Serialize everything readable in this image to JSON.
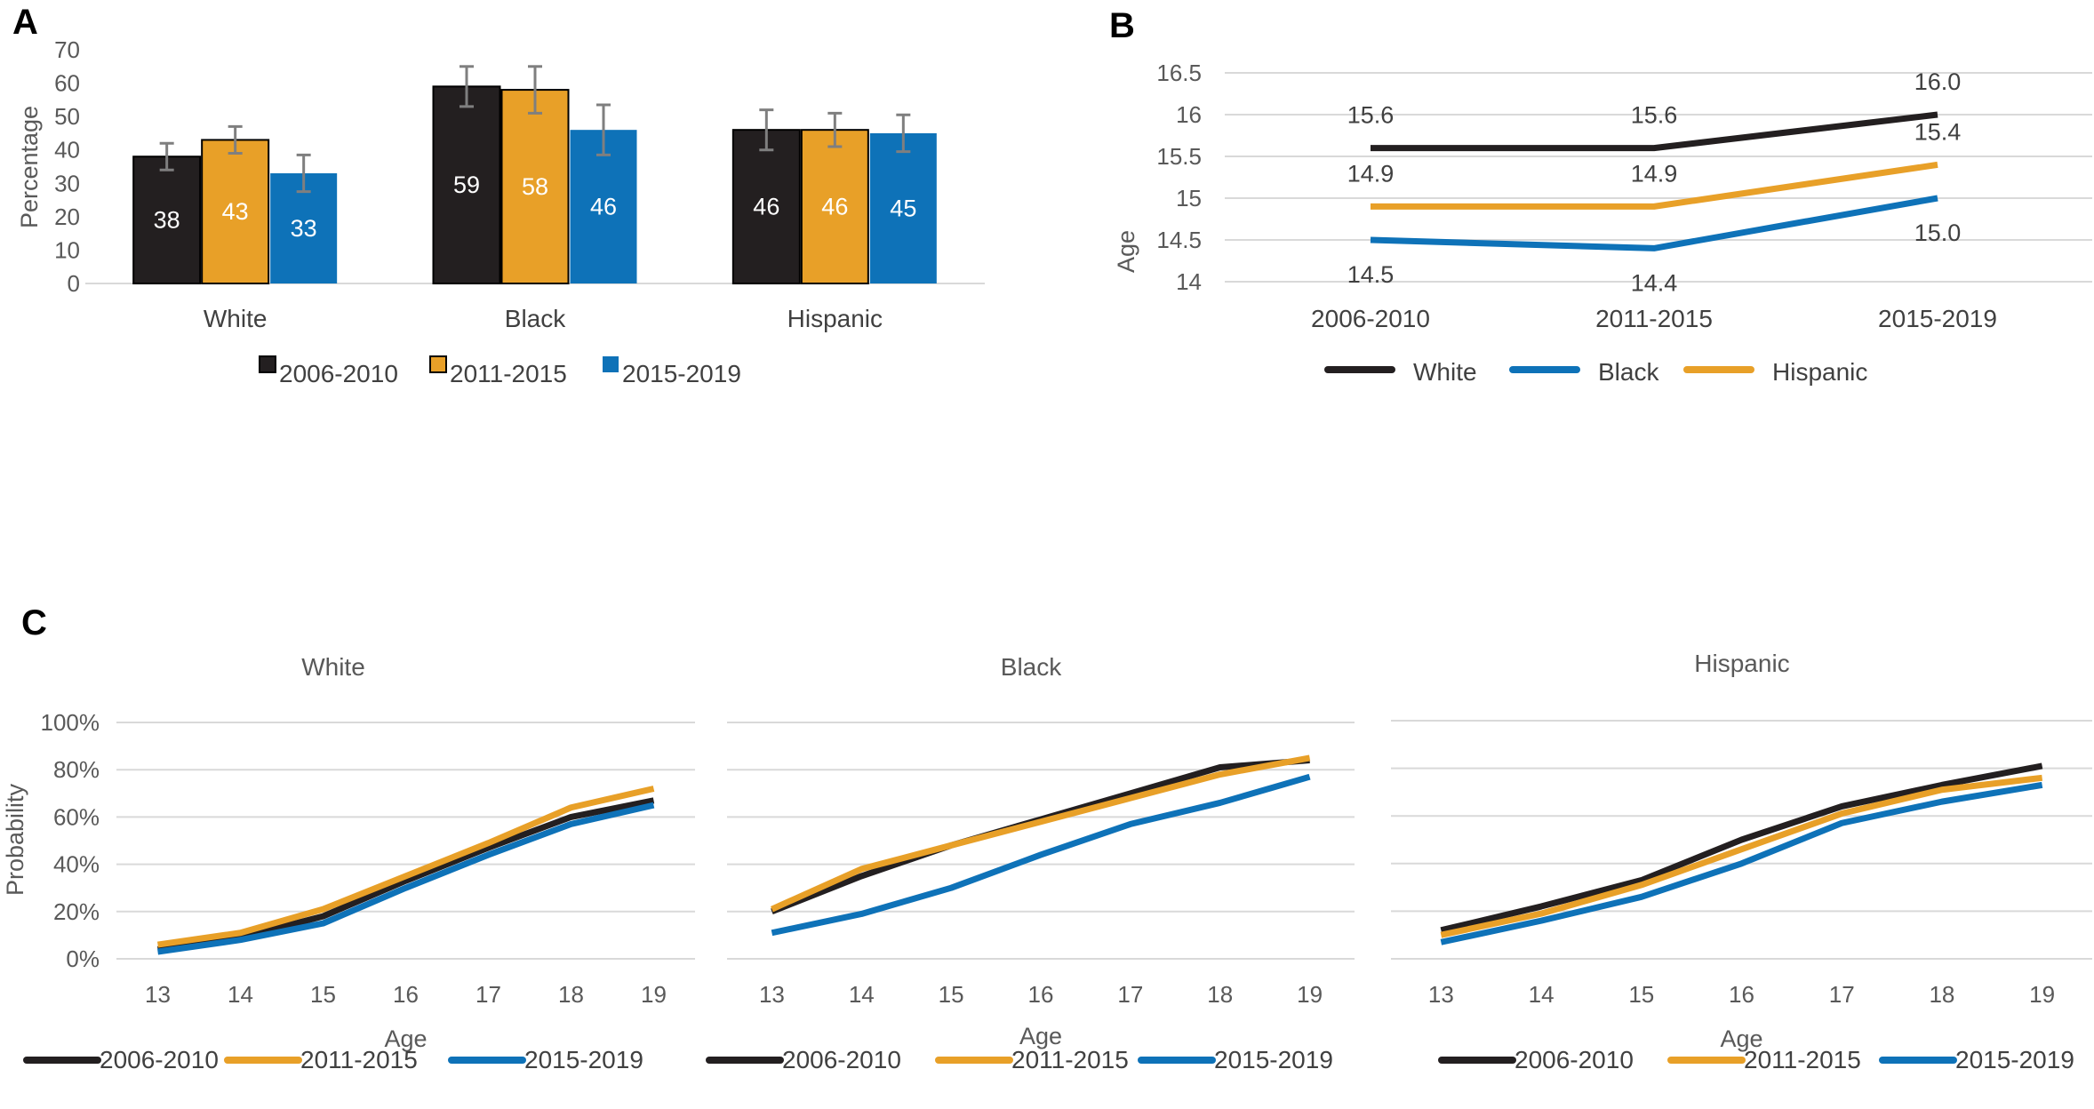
{
  "colors": {
    "2006-2010": "#231f20",
    "2011-2015": "#e8a028",
    "2015-2019": "#0e72b8",
    "errorbar": "#7f7f7f"
  },
  "chart_data": [
    {
      "panel": "A",
      "type": "bar",
      "title": "",
      "xlabel": "",
      "ylabel": "Percentage",
      "ylim": [
        0,
        70
      ],
      "yticks": [
        "0",
        "10",
        "20",
        "30",
        "40",
        "50",
        "60",
        "70"
      ],
      "categories": [
        "White",
        "Black",
        "Hispanic"
      ],
      "series": [
        {
          "name": "2006-2010",
          "values": [
            38,
            59,
            46
          ],
          "labels": [
            "38",
            "59",
            "46"
          ],
          "err_low": [
            34,
            53,
            40
          ],
          "err_high": [
            42,
            65,
            52
          ]
        },
        {
          "name": "2011-2015",
          "values": [
            43,
            58,
            46
          ],
          "labels": [
            "43",
            "58",
            "46"
          ],
          "err_low": [
            39,
            51,
            41
          ],
          "err_high": [
            47,
            65,
            51
          ]
        },
        {
          "name": "2015-2019",
          "values": [
            33,
            46,
            45
          ],
          "labels": [
            "33",
            "46",
            "45"
          ],
          "err_low": [
            27.5,
            38.5,
            39.5
          ],
          "err_high": [
            38.5,
            53.5,
            50.5
          ]
        }
      ],
      "legend": [
        "2006-2010",
        "2011-2015",
        "2015-2019"
      ],
      "legend_position": "bottom"
    },
    {
      "panel": "B",
      "type": "line",
      "title": "",
      "xlabel": "",
      "ylabel": "Age",
      "ylim": [
        14,
        16.5
      ],
      "yticks": [
        "14",
        "14.5",
        "15",
        "15.5",
        "16",
        "16.5"
      ],
      "categories": [
        "2006-2010",
        "2011-2015",
        "2015-2019"
      ],
      "series": [
        {
          "name": "White",
          "values": [
            15.6,
            15.6,
            16.0
          ],
          "labels": [
            "15.6",
            "15.6",
            "16.0"
          ]
        },
        {
          "name": "Black",
          "values": [
            14.5,
            14.4,
            15.0
          ],
          "labels": [
            "14.5",
            "14.4",
            "15.0"
          ]
        },
        {
          "name": "Hispanic",
          "values": [
            14.9,
            14.9,
            15.4
          ],
          "labels": [
            "14.9",
            "14.9",
            "15.4"
          ]
        }
      ],
      "legend": [
        "White",
        "Black",
        "Hispanic"
      ],
      "legend_position": "bottom"
    },
    {
      "panel": "C",
      "type": "line",
      "title": "White",
      "xlabel": "Age",
      "ylabel": "Probability",
      "ylim": [
        0,
        100
      ],
      "yticks": [
        "0%",
        "20%",
        "40%",
        "60%",
        "80%",
        "100%"
      ],
      "x": [
        "13",
        "14",
        "15",
        "16",
        "17",
        "18",
        "19"
      ],
      "series": [
        {
          "name": "2006-2010",
          "values": [
            4,
            9,
            18,
            33,
            47,
            60,
            67
          ]
        },
        {
          "name": "2011-2015",
          "values": [
            6,
            11,
            21,
            35,
            49,
            64,
            72
          ]
        },
        {
          "name": "2015-2019",
          "values": [
            3,
            8,
            15,
            30,
            44,
            57,
            65
          ]
        }
      ],
      "legend": [
        "2006-2010",
        "2011-2015",
        "2015-2019"
      ],
      "legend_position": "bottom"
    },
    {
      "panel": "C",
      "type": "line",
      "title": "Black",
      "xlabel": "Age",
      "ylabel": "",
      "ylim": [
        0,
        100
      ],
      "x": [
        "13",
        "14",
        "15",
        "16",
        "17",
        "18",
        "19"
      ],
      "series": [
        {
          "name": "2006-2010",
          "values": [
            20,
            35,
            48,
            59,
            70,
            81,
            84
          ]
        },
        {
          "name": "2011-2015",
          "values": [
            21,
            38,
            48,
            58,
            68,
            78,
            85
          ]
        },
        {
          "name": "2015-2019",
          "values": [
            11,
            19,
            30,
            44,
            57,
            66,
            77
          ]
        }
      ],
      "legend": [
        "2006-2010",
        "2011-2015",
        "2015-2019"
      ],
      "legend_position": "bottom"
    },
    {
      "panel": "C",
      "type": "line",
      "title": "Hispanic",
      "xlabel": "Age",
      "ylabel": "",
      "ylim": [
        0,
        100
      ],
      "x": [
        "13",
        "14",
        "15",
        "16",
        "17",
        "18",
        "19"
      ],
      "series": [
        {
          "name": "2006-2010",
          "values": [
            12,
            22,
            33,
            50,
            64,
            73,
            81
          ]
        },
        {
          "name": "2011-2015",
          "values": [
            10,
            19,
            31,
            46,
            61,
            71,
            76
          ]
        },
        {
          "name": "2015-2019",
          "values": [
            7,
            16,
            26,
            40,
            57,
            66,
            73
          ]
        }
      ],
      "legend": [
        "2006-2010",
        "2011-2015",
        "2015-2019"
      ],
      "legend_position": "bottom"
    }
  ]
}
